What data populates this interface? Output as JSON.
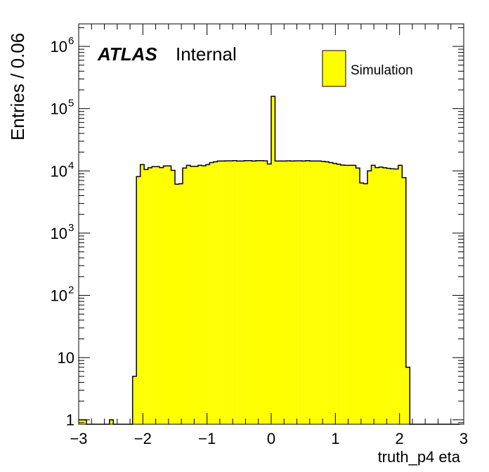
{
  "chart_data": {
    "type": "bar",
    "histogram": true,
    "xlabel": "truth_p4 eta",
    "ylabel": "Entries / 0.06",
    "xlim": [
      -3,
      3
    ],
    "ylim": [
      0.85,
      2300000
    ],
    "yscale": "log",
    "bin_width": 0.06,
    "x_ticks": [
      "−3",
      "−2",
      "−1",
      "0",
      "1",
      "2",
      "3"
    ],
    "x_tick_values": [
      -3,
      -2,
      -1,
      0,
      1,
      2,
      3
    ],
    "y_ticks": [
      {
        "value": 1,
        "base": "1",
        "exp": ""
      },
      {
        "value": 10,
        "base": "10",
        "exp": ""
      },
      {
        "value": 100,
        "base": "10",
        "exp": "2"
      },
      {
        "value": 1000,
        "base": "10",
        "exp": "3"
      },
      {
        "value": 10000,
        "base": "10",
        "exp": "4"
      },
      {
        "value": 100000,
        "base": "10",
        "exp": "5"
      },
      {
        "value": 1000000,
        "base": "10",
        "exp": "6"
      }
    ],
    "series": [
      {
        "name": "Simulation",
        "color": "#ffff00",
        "bin_start": -3,
        "values": [
          1,
          1,
          0,
          0,
          0,
          0,
          0,
          0,
          1,
          0,
          0,
          0,
          0,
          0,
          5,
          8100,
          12600,
          10500,
          11200,
          11700,
          11700,
          11300,
          12000,
          12000,
          10200,
          6100,
          6200,
          11100,
          12300,
          11800,
          11800,
          12300,
          12100,
          12600,
          13600,
          14000,
          14400,
          14400,
          14500,
          14500,
          14600,
          14400,
          14400,
          14600,
          14600,
          14400,
          14600,
          14600,
          14500,
          12900,
          158000,
          14400,
          14400,
          14400,
          14500,
          14400,
          14500,
          14500,
          14400,
          14600,
          14400,
          14400,
          14400,
          14200,
          14000,
          13600,
          13200,
          12800,
          12400,
          12300,
          12300,
          12300,
          11100,
          6400,
          6200,
          10000,
          12300,
          11300,
          11500,
          11200,
          11000,
          10800,
          10700,
          12300,
          7800,
          7,
          0,
          0,
          0,
          0,
          0,
          0,
          0,
          0,
          0,
          0,
          0,
          0,
          0
        ]
      }
    ],
    "legend": {
      "position": "top-right",
      "entries": [
        "Simulation"
      ]
    },
    "annotations": {
      "experiment": "ATLAS",
      "status": "Internal"
    }
  }
}
